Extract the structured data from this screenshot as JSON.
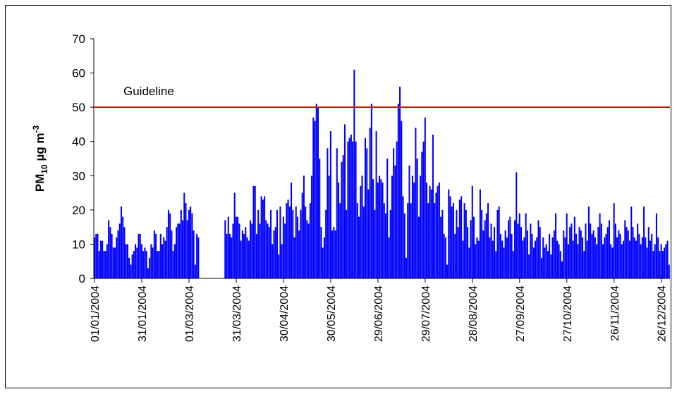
{
  "chart_data": {
    "type": "bar",
    "y_label_parts": [
      "PM",
      "10",
      " µg m",
      "-3"
    ],
    "color": "#0000ff",
    "ylim": [
      0,
      70
    ],
    "yticks": [
      0,
      10,
      20,
      30,
      40,
      50,
      60,
      70
    ],
    "grid": false,
    "reference_line": {
      "value": 50,
      "label": "Guideline",
      "color": "#dd0000"
    },
    "categories": [
      "01/01/2004",
      null,
      null,
      null,
      null,
      null,
      null,
      null,
      null,
      null,
      null,
      null,
      null,
      null,
      null,
      null,
      null,
      null,
      null,
      null,
      null,
      null,
      null,
      null,
      null,
      null,
      null,
      null,
      null,
      null,
      "31/01/2004",
      null,
      null,
      null,
      null,
      null,
      null,
      null,
      null,
      null,
      null,
      null,
      null,
      null,
      null,
      null,
      null,
      null,
      null,
      null,
      null,
      null,
      null,
      null,
      null,
      null,
      null,
      null,
      null,
      null,
      "01/03/2004",
      null,
      null,
      null,
      null,
      null,
      null,
      null,
      null,
      null,
      null,
      null,
      null,
      null,
      null,
      null,
      null,
      null,
      null,
      null,
      null,
      null,
      null,
      null,
      null,
      null,
      null,
      null,
      null,
      null,
      "31/03/2004",
      null,
      null,
      null,
      null,
      null,
      null,
      null,
      null,
      null,
      null,
      null,
      null,
      null,
      null,
      null,
      null,
      null,
      null,
      null,
      null,
      null,
      null,
      null,
      null,
      null,
      null,
      null,
      null,
      null,
      "30/04/2004",
      null,
      null,
      null,
      null,
      null,
      null,
      null,
      null,
      null,
      null,
      null,
      null,
      null,
      null,
      null,
      null,
      null,
      null,
      null,
      null,
      null,
      null,
      null,
      null,
      null,
      null,
      null,
      null,
      null,
      "30/05/2004",
      null,
      null,
      null,
      null,
      null,
      null,
      null,
      null,
      null,
      null,
      null,
      null,
      null,
      null,
      null,
      null,
      null,
      null,
      null,
      null,
      null,
      null,
      null,
      null,
      null,
      null,
      null,
      null,
      null,
      "29/06/2004",
      null,
      null,
      null,
      null,
      null,
      null,
      null,
      null,
      null,
      null,
      null,
      null,
      null,
      null,
      null,
      null,
      null,
      null,
      null,
      null,
      null,
      null,
      null,
      null,
      null,
      null,
      null,
      null,
      null,
      "29/07/2004",
      null,
      null,
      null,
      null,
      null,
      null,
      null,
      null,
      null,
      null,
      null,
      null,
      null,
      null,
      null,
      null,
      null,
      null,
      null,
      null,
      null,
      null,
      null,
      null,
      null,
      null,
      null,
      null,
      null,
      "28/08/2004",
      null,
      null,
      null,
      null,
      null,
      null,
      null,
      null,
      null,
      null,
      null,
      null,
      null,
      null,
      null,
      null,
      null,
      null,
      null,
      null,
      null,
      null,
      null,
      null,
      null,
      null,
      null,
      null,
      null,
      "27/09/2004",
      null,
      null,
      null,
      null,
      null,
      null,
      null,
      null,
      null,
      null,
      null,
      null,
      null,
      null,
      null,
      null,
      null,
      null,
      null,
      null,
      null,
      null,
      null,
      null,
      null,
      null,
      null,
      null,
      null,
      "27/10/2004",
      null,
      null,
      null,
      null,
      null,
      null,
      null,
      null,
      null,
      null,
      null,
      null,
      null,
      null,
      null,
      null,
      null,
      null,
      null,
      null,
      null,
      null,
      null,
      null,
      null,
      null,
      null,
      null,
      null,
      "26/11/2004",
      null,
      null,
      null,
      null,
      null,
      null,
      null,
      null,
      null,
      null,
      null,
      null,
      null,
      null,
      null,
      null,
      null,
      null,
      null,
      null,
      null,
      null,
      null,
      null,
      null,
      null,
      null,
      null,
      null,
      "26/12/2004",
      null,
      null,
      null,
      null,
      null
    ],
    "values": [
      12,
      13,
      13,
      8,
      11,
      11,
      8,
      8,
      10,
      17,
      15,
      13,
      9,
      9,
      12,
      14,
      16,
      21,
      18,
      15,
      10,
      10,
      6,
      4,
      7,
      8,
      10,
      9,
      13,
      13,
      10,
      8,
      9,
      8,
      3,
      6,
      10,
      9,
      14,
      13,
      8,
      8,
      13,
      10,
      12,
      11,
      15,
      20,
      19,
      14,
      8,
      10,
      15,
      16,
      16,
      20,
      17,
      25,
      22,
      17,
      20,
      21,
      19,
      14,
      4,
      13,
      12,
      null,
      null,
      null,
      null,
      null,
      null,
      null,
      null,
      null,
      null,
      null,
      null,
      null,
      null,
      null,
      null,
      17,
      13,
      18,
      13,
      12,
      16,
      25,
      18,
      18,
      16,
      11,
      14,
      13,
      15,
      12,
      11,
      17,
      16,
      27,
      27,
      13,
      20,
      16,
      24,
      23,
      24,
      17,
      16,
      15,
      20,
      10,
      14,
      15,
      20,
      7,
      21,
      10,
      18,
      16,
      22,
      23,
      21,
      28,
      20,
      12,
      21,
      18,
      14,
      20,
      25,
      30,
      21,
      17,
      16,
      22,
      30,
      47,
      46,
      51,
      50,
      35,
      15,
      9,
      12,
      20,
      38,
      30,
      43,
      14,
      15,
      14,
      38,
      28,
      22,
      34,
      36,
      45,
      20,
      40,
      41,
      42,
      40,
      61,
      40,
      22,
      18,
      27,
      30,
      21,
      41,
      38,
      26,
      44,
      51,
      29,
      20,
      43,
      28,
      30,
      29,
      28,
      22,
      19,
      35,
      12,
      20,
      30,
      38,
      33,
      40,
      51,
      56,
      46,
      24,
      19,
      6,
      22,
      33,
      22,
      30,
      28,
      44,
      35,
      18,
      30,
      37,
      40,
      47,
      28,
      22,
      27,
      26,
      42,
      22,
      25,
      27,
      28,
      18,
      20,
      13,
      12,
      4,
      26,
      24,
      21,
      22,
      13,
      20,
      15,
      23,
      24,
      11,
      22,
      20,
      15,
      9,
      17,
      27,
      18,
      10,
      12,
      11,
      26,
      20,
      14,
      17,
      19,
      22,
      12,
      16,
      11,
      15,
      8,
      20,
      21,
      13,
      11,
      9,
      14,
      12,
      17,
      18,
      13,
      8,
      17,
      31,
      16,
      19,
      15,
      11,
      12,
      19,
      14,
      7,
      16,
      13,
      9,
      11,
      12,
      17,
      15,
      6,
      12,
      9,
      10,
      8,
      13,
      7,
      12,
      14,
      19,
      11,
      10,
      8,
      5,
      14,
      12,
      19,
      10,
      15,
      16,
      11,
      18,
      13,
      10,
      15,
      14,
      12,
      8,
      16,
      11,
      21,
      16,
      13,
      14,
      12,
      10,
      15,
      19,
      16,
      10,
      12,
      13,
      15,
      17,
      10,
      9,
      22,
      16,
      12,
      14,
      13,
      10,
      11,
      17,
      15,
      14,
      11,
      21,
      15,
      12,
      11,
      16,
      13,
      10,
      12,
      21,
      12,
      9,
      15,
      11,
      13,
      8,
      10,
      19,
      12,
      8,
      10,
      8,
      9,
      10,
      11,
      4
    ]
  }
}
